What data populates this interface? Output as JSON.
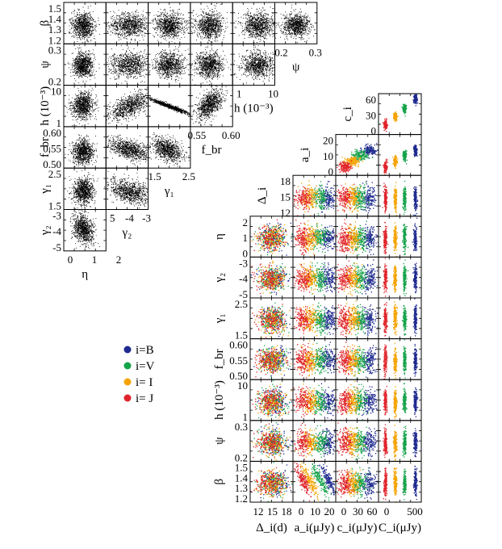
{
  "chart_data": {
    "type": "scatter",
    "title": "",
    "colors": {
      "B": "#1f2a8f",
      "V": "#16a34a",
      "I": "#f5a300",
      "J": "#e0242a",
      "single": "#000000"
    },
    "legend": {
      "placement": "left-middle",
      "entries": [
        {
          "key": "B",
          "label": "i=B"
        },
        {
          "key": "V",
          "label": "i=V"
        },
        {
          "key": "I",
          "label": "i= I"
        },
        {
          "key": "J",
          "label": "i= J"
        }
      ]
    },
    "triangle": {
      "row_labels": [
        "β",
        "ψ",
        "h (10⁻³)",
        "f_br",
        "γ₁",
        "γ₂"
      ],
      "col_labels": [
        "η",
        "γ₂",
        "γ₁",
        "f_br",
        "h (10⁻³)",
        "ψ"
      ],
      "row_ticks": [
        [
          "1.5",
          "1.4",
          "1.3",
          "1.2"
        ],
        [
          "0.3",
          "0.2"
        ],
        [
          "10",
          "1"
        ],
        [
          "0.60",
          "0.55",
          "0.50"
        ],
        [
          "2.5",
          "1.5"
        ],
        [
          "-3",
          "-4",
          "-5"
        ]
      ],
      "bottom_ticks": [
        "0",
        "1",
        "2"
      ],
      "diagonal_ticks": [
        [
          "5",
          "-4",
          "-3"
        ],
        [
          "1.5",
          "2.5"
        ],
        [
          "0.55",
          "0.60"
        ],
        [
          "1",
          "10"
        ],
        [
          "0.2",
          "0.3"
        ]
      ],
      "marginals": [
        {
          "param": "β",
          "center": 1.31,
          "spread": 0.05,
          "range": [
            1.15,
            1.55
          ]
        },
        {
          "param": "ψ",
          "center": 0.23,
          "spread": 0.02,
          "range": [
            0.16,
            0.31
          ]
        },
        {
          "param": "h (10⁻³)",
          "center": 7.0,
          "spread": 1.5,
          "range": [
            0,
            11
          ]
        },
        {
          "param": "f_br",
          "center": 0.555,
          "spread": 0.01,
          "range": [
            0.5,
            0.6
          ]
        },
        {
          "param": "γ₁",
          "center": 1.95,
          "spread": 0.25,
          "range": [
            1.1,
            2.8
          ]
        },
        {
          "param": "γ₂",
          "center": -3.7,
          "spread": 0.5,
          "range": [
            -5.5,
            -2.5
          ]
        },
        {
          "param": "η",
          "center": 0.65,
          "spread": 0.18,
          "range": [
            0,
            2
          ]
        }
      ]
    },
    "grid": {
      "row_labels": [
        "c_i",
        "a_i",
        "Δ_i",
        "η",
        "γ₂",
        "γ₁",
        "f_br",
        "h (10⁻³)",
        "ψ",
        "β"
      ],
      "col_labels": [
        "Δ_i(d)",
        "a_i(μJy)",
        "c_i(μJy)",
        "C_i(μJy)"
      ],
      "row_ticks": [
        [
          "60",
          "30",
          "0"
        ],
        [
          "20",
          "10",
          "0"
        ],
        [
          "18",
          "15",
          "12"
        ],
        [
          "2",
          "1",
          "0"
        ],
        [
          "-3",
          "-4",
          "-5"
        ],
        [
          "2.5",
          "1.5"
        ],
        [
          "0.60",
          "0.55",
          "0.50"
        ],
        [
          "10",
          "1"
        ],
        [
          "0.3",
          "0.2"
        ],
        [
          "1.5",
          "1.4",
          "1.3",
          "1.2"
        ]
      ],
      "col_ticks": [
        [
          "12",
          "15",
          "18"
        ],
        [
          "0",
          "10",
          "20"
        ],
        [
          "0",
          "30",
          "60"
        ],
        [
          "0",
          "500"
        ]
      ],
      "band_centers": {
        "Δ_i": {
          "B": 15.2,
          "V": 15.2,
          "I": 15.0,
          "J": 14.8
        },
        "a_i": {
          "B": 18.5,
          "V": 15.0,
          "I": 9.0,
          "J": 5.0
        },
        "c_i": {
          "B": 60,
          "V": 45,
          "I": 28,
          "J": 12
        },
        "C_i": {
          "B": 520,
          "V": 370,
          "I": 230,
          "J": 80
        }
      }
    }
  }
}
